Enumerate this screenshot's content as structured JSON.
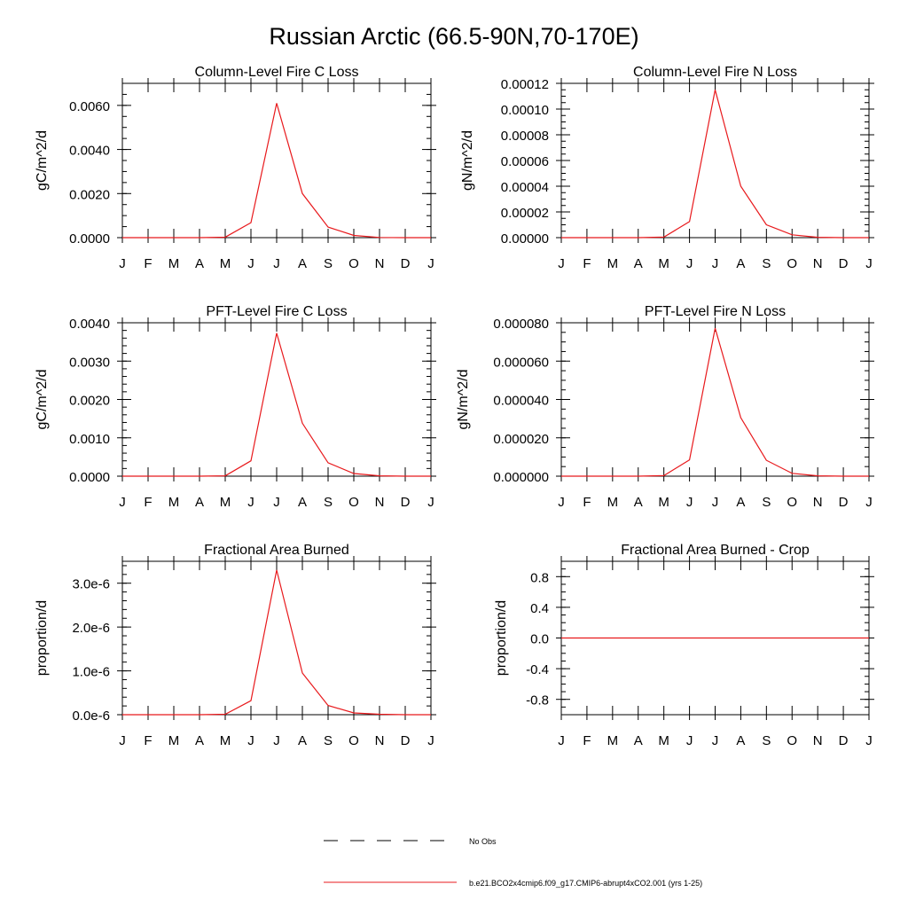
{
  "figure": {
    "title": "Russian Arctic (66.5-90N,70-170E)",
    "line_color": "#e8191c"
  },
  "chart_data": [
    {
      "type": "line",
      "title": "Column-Level Fire C Loss",
      "ylabel": "gC/m^2/d",
      "categories": [
        "J",
        "F",
        "M",
        "A",
        "M",
        "J",
        "J",
        "A",
        "S",
        "O",
        "N",
        "D",
        "J"
      ],
      "ylim": [
        0,
        0.007
      ],
      "yticks": [
        0,
        0.002,
        0.004,
        0.006
      ],
      "ytick_labels": [
        "0.0000",
        "0.0020",
        "0.0040",
        "0.0060"
      ],
      "yminor": 0.0005,
      "series": [
        {
          "name": "b.e21.BCO2x4cmip6.f09_g17.CMIP6-abrupt4xCO2.001 (yrs 1-25)",
          "values": [
            0,
            0,
            0,
            0,
            2e-05,
            0.00068,
            0.0061,
            0.002,
            0.00048,
            0.0001,
            1e-05,
            0,
            0
          ]
        }
      ]
    },
    {
      "type": "line",
      "title": "Column-Level Fire N Loss",
      "ylabel": "gN/m^2/d",
      "categories": [
        "J",
        "F",
        "M",
        "A",
        "M",
        "J",
        "J",
        "A",
        "S",
        "O",
        "N",
        "D",
        "J"
      ],
      "ylim": [
        0,
        0.00012
      ],
      "yticks": [
        0,
        2e-05,
        4e-05,
        6e-05,
        8e-05,
        0.0001,
        0.00012
      ],
      "ytick_labels": [
        "0.00000",
        "0.00002",
        "0.00004",
        "0.00006",
        "0.00008",
        "0.00010",
        "0.00012"
      ],
      "yminor": 5e-06,
      "series": [
        {
          "name": "b.e21.BCO2x4cmip6.f09_g17.CMIP6-abrupt4xCO2.001 (yrs 1-25)",
          "values": [
            0,
            0,
            0,
            0,
            4e-07,
            1.25e-05,
            0.000115,
            4e-05,
            1e-05,
            2.2e-06,
            3e-07,
            0,
            0
          ]
        }
      ]
    },
    {
      "type": "line",
      "title": "PFT-Level Fire C Loss",
      "ylabel": "gC/m^2/d",
      "categories": [
        "J",
        "F",
        "M",
        "A",
        "M",
        "J",
        "J",
        "A",
        "S",
        "O",
        "N",
        "D",
        "J"
      ],
      "ylim": [
        0,
        0.004
      ],
      "yticks": [
        0,
        0.001,
        0.002,
        0.003,
        0.004
      ],
      "ytick_labels": [
        "0.0000",
        "0.0010",
        "0.0020",
        "0.0030",
        "0.0040"
      ],
      "yminor": 0.0002,
      "series": [
        {
          "name": "b.e21.BCO2x4cmip6.f09_g17.CMIP6-abrupt4xCO2.001 (yrs 1-25)",
          "values": [
            0,
            0,
            0,
            0,
            1e-05,
            0.0004,
            0.00373,
            0.00138,
            0.00035,
            7e-05,
            1e-05,
            0,
            0
          ]
        }
      ]
    },
    {
      "type": "line",
      "title": "PFT-Level Fire N Loss",
      "ylabel": "gN/m^2/d",
      "categories": [
        "J",
        "F",
        "M",
        "A",
        "M",
        "J",
        "J",
        "A",
        "S",
        "O",
        "N",
        "D",
        "J"
      ],
      "ylim": [
        0,
        8e-05
      ],
      "yticks": [
        0,
        2e-05,
        4e-05,
        6e-05,
        8e-05
      ],
      "ytick_labels": [
        "0.000000",
        "0.000020",
        "0.000040",
        "0.000060",
        "0.000080"
      ],
      "yminor": 5e-06,
      "series": [
        {
          "name": "b.e21.BCO2x4cmip6.f09_g17.CMIP6-abrupt4xCO2.001 (yrs 1-25)",
          "values": [
            0,
            0,
            0,
            0,
            3e-07,
            8.5e-06,
            7.72e-05,
            3.05e-05,
            8.3e-06,
            1.5e-06,
            2e-07,
            0,
            0
          ]
        }
      ]
    },
    {
      "type": "line",
      "title": "Fractional Area Burned",
      "ylabel": "proportion/d",
      "categories": [
        "J",
        "F",
        "M",
        "A",
        "M",
        "J",
        "J",
        "A",
        "S",
        "O",
        "N",
        "D",
        "J"
      ],
      "ylim": [
        0,
        3.5e-06
      ],
      "yticks": [
        0,
        1e-06,
        2e-06,
        3e-06
      ],
      "ytick_labels": [
        "0.0e-6",
        "1.0e-6",
        "2.0e-6",
        "3.0e-6"
      ],
      "yminor": 2e-07,
      "series": [
        {
          "name": "b.e21.BCO2x4cmip6.f09_g17.CMIP6-abrupt4xCO2.001 (yrs 1-25)",
          "values": [
            0,
            0,
            0,
            0,
            1e-08,
            3.2e-07,
            3.3e-06,
            9.5e-07,
            2.1e-07,
            4e-08,
            1e-08,
            0,
            0
          ]
        }
      ]
    },
    {
      "type": "line",
      "title": "Fractional Area Burned - Crop",
      "ylabel": "proportion/d",
      "categories": [
        "J",
        "F",
        "M",
        "A",
        "M",
        "J",
        "J",
        "A",
        "S",
        "O",
        "N",
        "D",
        "J"
      ],
      "ylim": [
        -1,
        1
      ],
      "yticks": [
        -0.8,
        -0.4,
        0,
        0.4,
        0.8
      ],
      "ytick_labels": [
        "-0.8",
        "-0.4",
        "0.0",
        "0.4",
        "0.8"
      ],
      "yminor": 0.1,
      "series": [
        {
          "name": "b.e21.BCO2x4cmip6.f09_g17.CMIP6-abrupt4xCO2.001 (yrs 1-25)",
          "values": [
            0,
            0,
            0,
            0,
            0,
            0,
            0,
            0,
            0,
            0,
            0,
            0,
            0
          ]
        }
      ]
    }
  ],
  "legend": {
    "entries": [
      {
        "label": "No Obs",
        "style": "dashed",
        "color": "#000000"
      },
      {
        "label": "b.e21.BCO2x4cmip6.f09_g17.CMIP6-abrupt4xCO2.001 (yrs 1-25)",
        "style": "solid",
        "color": "#e8191c"
      }
    ]
  }
}
